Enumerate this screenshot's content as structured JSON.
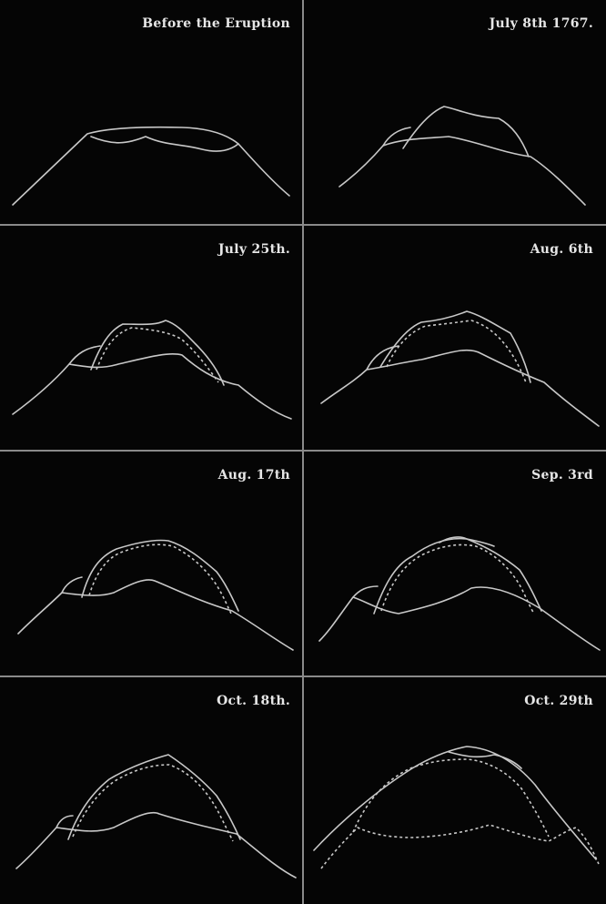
{
  "stroke_color": "#c8c8c8",
  "background_color": "#050505",
  "panels": [
    {
      "label": "Before the Eruption"
    },
    {
      "label": "July 8th 1767."
    },
    {
      "label": "July 25th."
    },
    {
      "label": "Aug. 6th"
    },
    {
      "label": "Aug. 17th"
    },
    {
      "label": "Sep. 3rd"
    },
    {
      "label": "Oct. 18th."
    },
    {
      "label": "Oct. 29th"
    }
  ]
}
